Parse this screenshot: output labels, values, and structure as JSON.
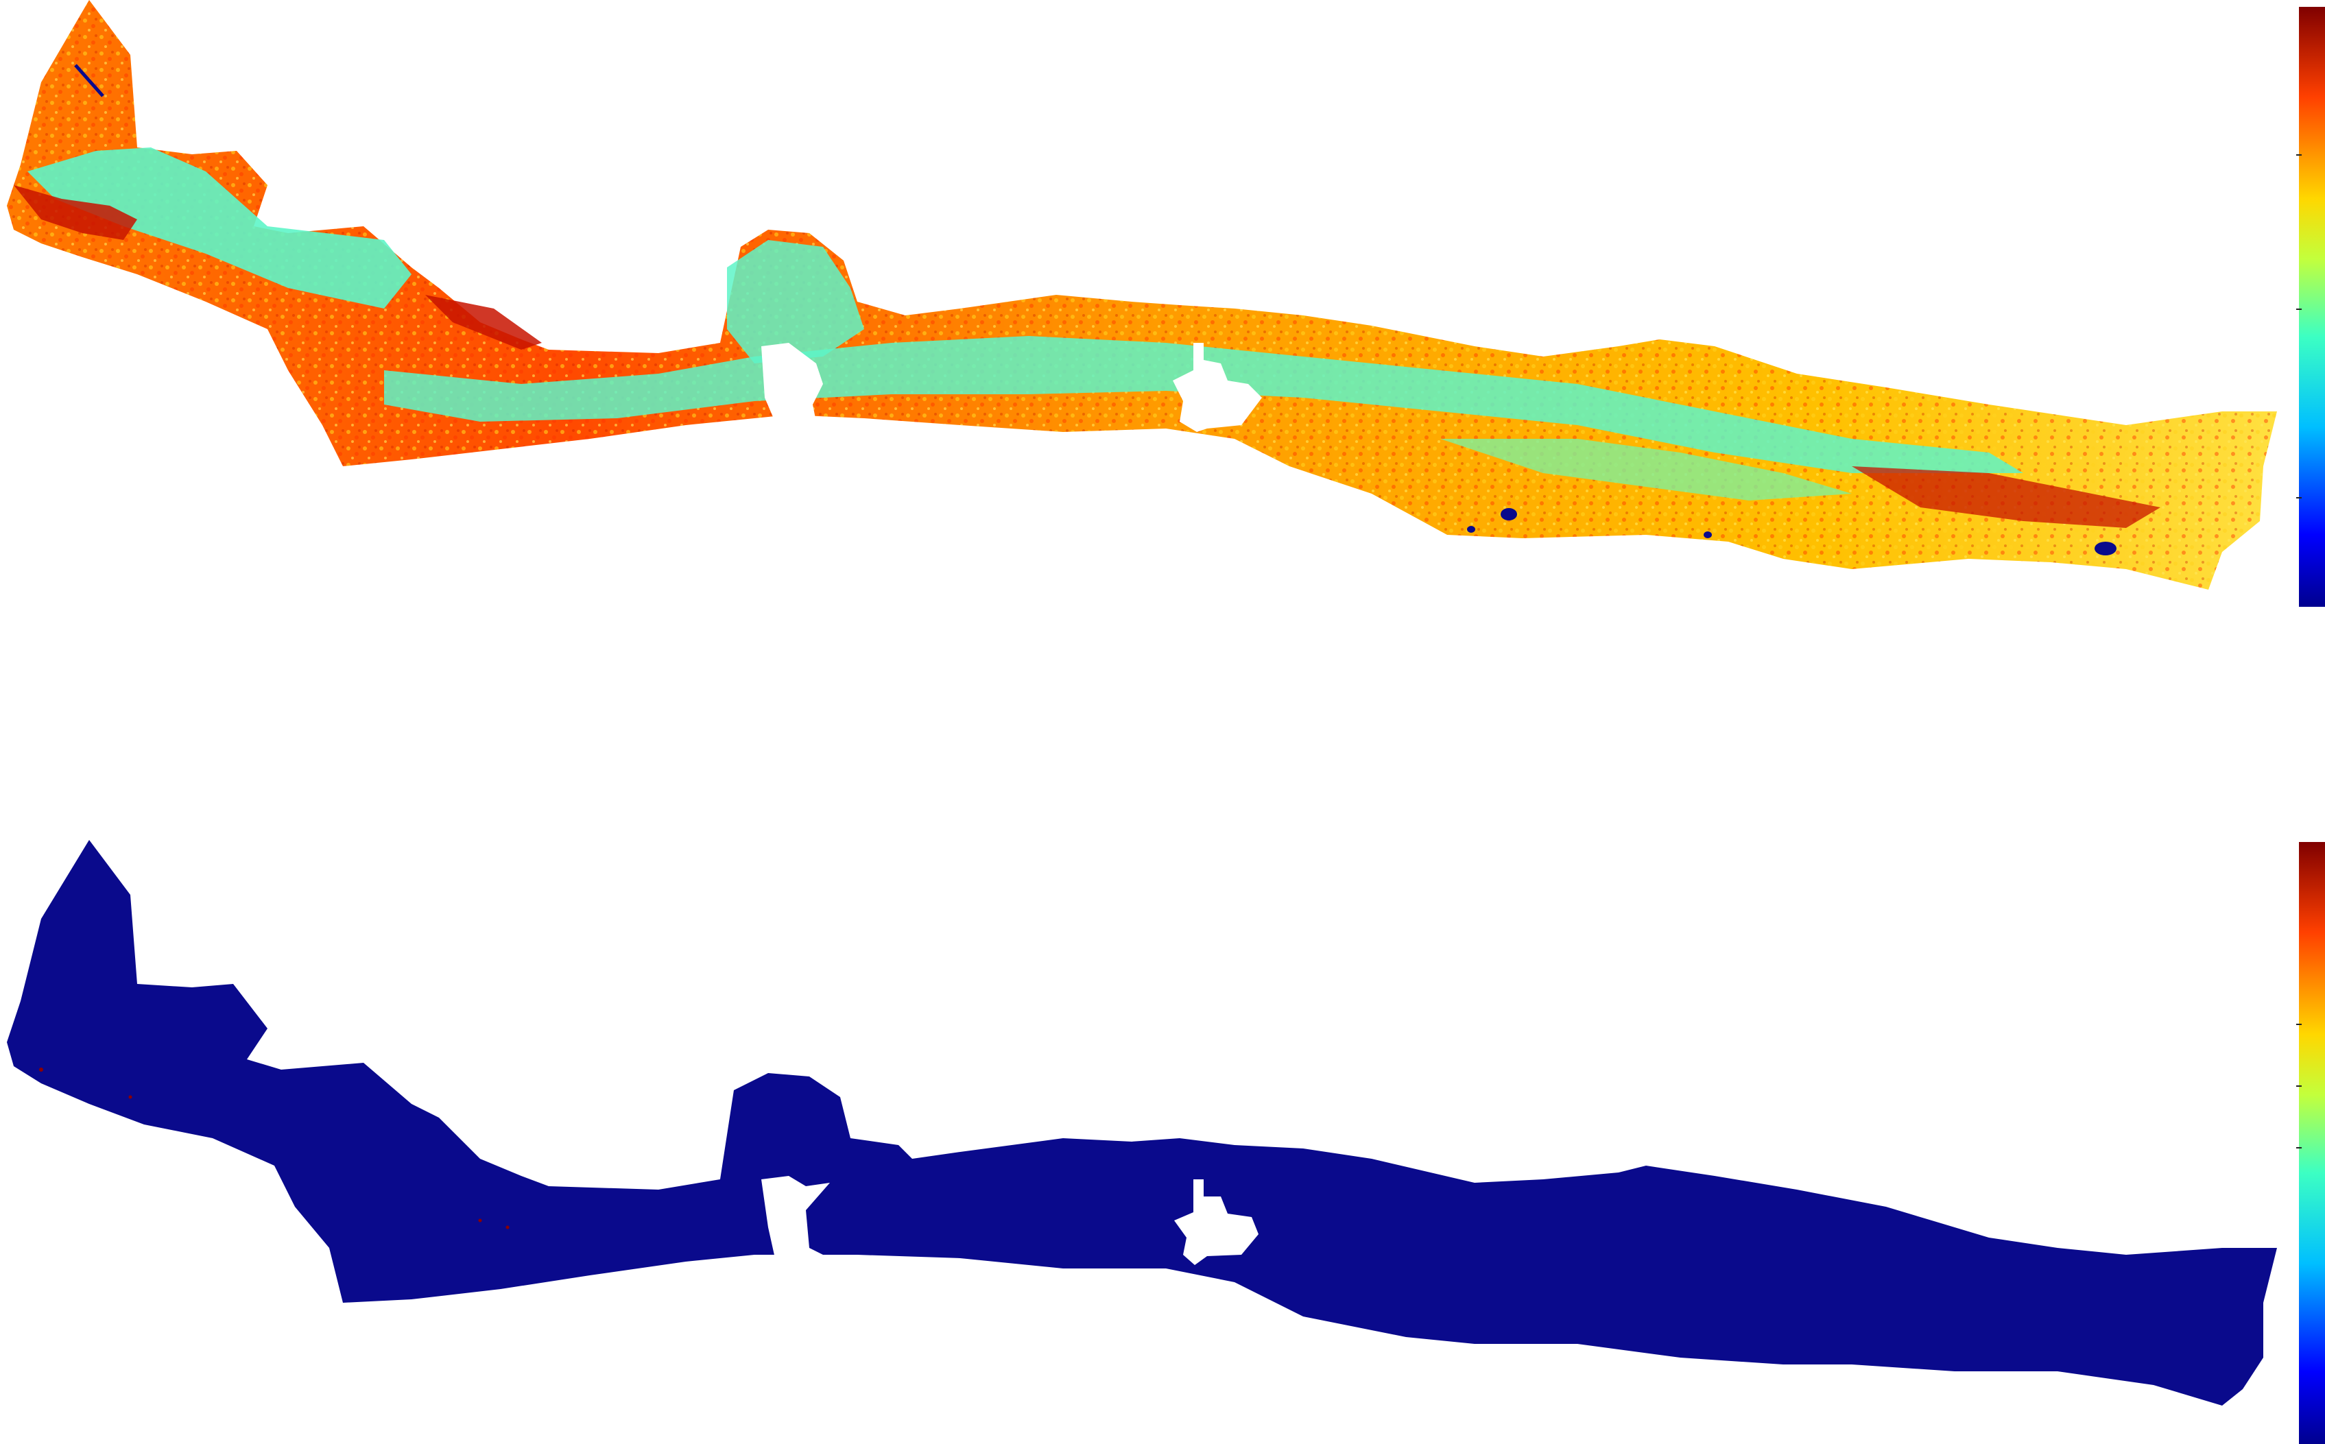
{
  "maps": [
    {
      "id": "top",
      "description_colors": {
        "dominant": "#ff5a00",
        "secondary": "#ffd21e",
        "band": "#5ef5c8",
        "highlight": "#c81400",
        "water": "#0a0a8c"
      },
      "colorbar": {
        "colormap": "jet",
        "ticks": 4
      }
    },
    {
      "id": "bottom",
      "description_colors": {
        "fill": "#0a0a8c",
        "speck": "#8b0000"
      },
      "colorbar": {
        "colormap": "jet",
        "ticks": 4
      }
    }
  ],
  "icons": {
    "top_region": "landmass-shape",
    "bottom_region": "landmass-shape",
    "colorbar": "colorbar-legend"
  }
}
